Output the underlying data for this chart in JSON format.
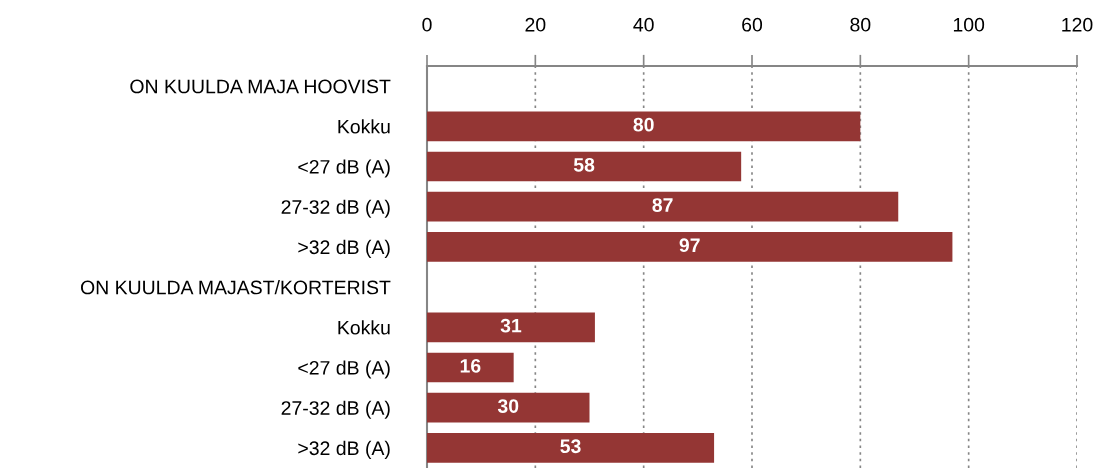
{
  "chart_data": {
    "type": "bar",
    "orientation": "horizontal",
    "categories": [
      "ON KUULDA MAJA HOOVIST",
      "Kokku",
      "<27 dB (A)",
      "27-32 dB (A)",
      ">32 dB (A)",
      "ON KUULDA MAJAST/KORTERIST",
      "Kokku",
      "<27 dB (A)",
      "27-32 dB (A)",
      ">32 dB (A)"
    ],
    "values": [
      null,
      80,
      58,
      87,
      97,
      null,
      31,
      16,
      30,
      53
    ],
    "color": "#943634",
    "xlim": [
      0,
      120
    ],
    "xticks": [
      0,
      20,
      40,
      60,
      80,
      100,
      120
    ],
    "grid": "x",
    "data_labels": true
  }
}
